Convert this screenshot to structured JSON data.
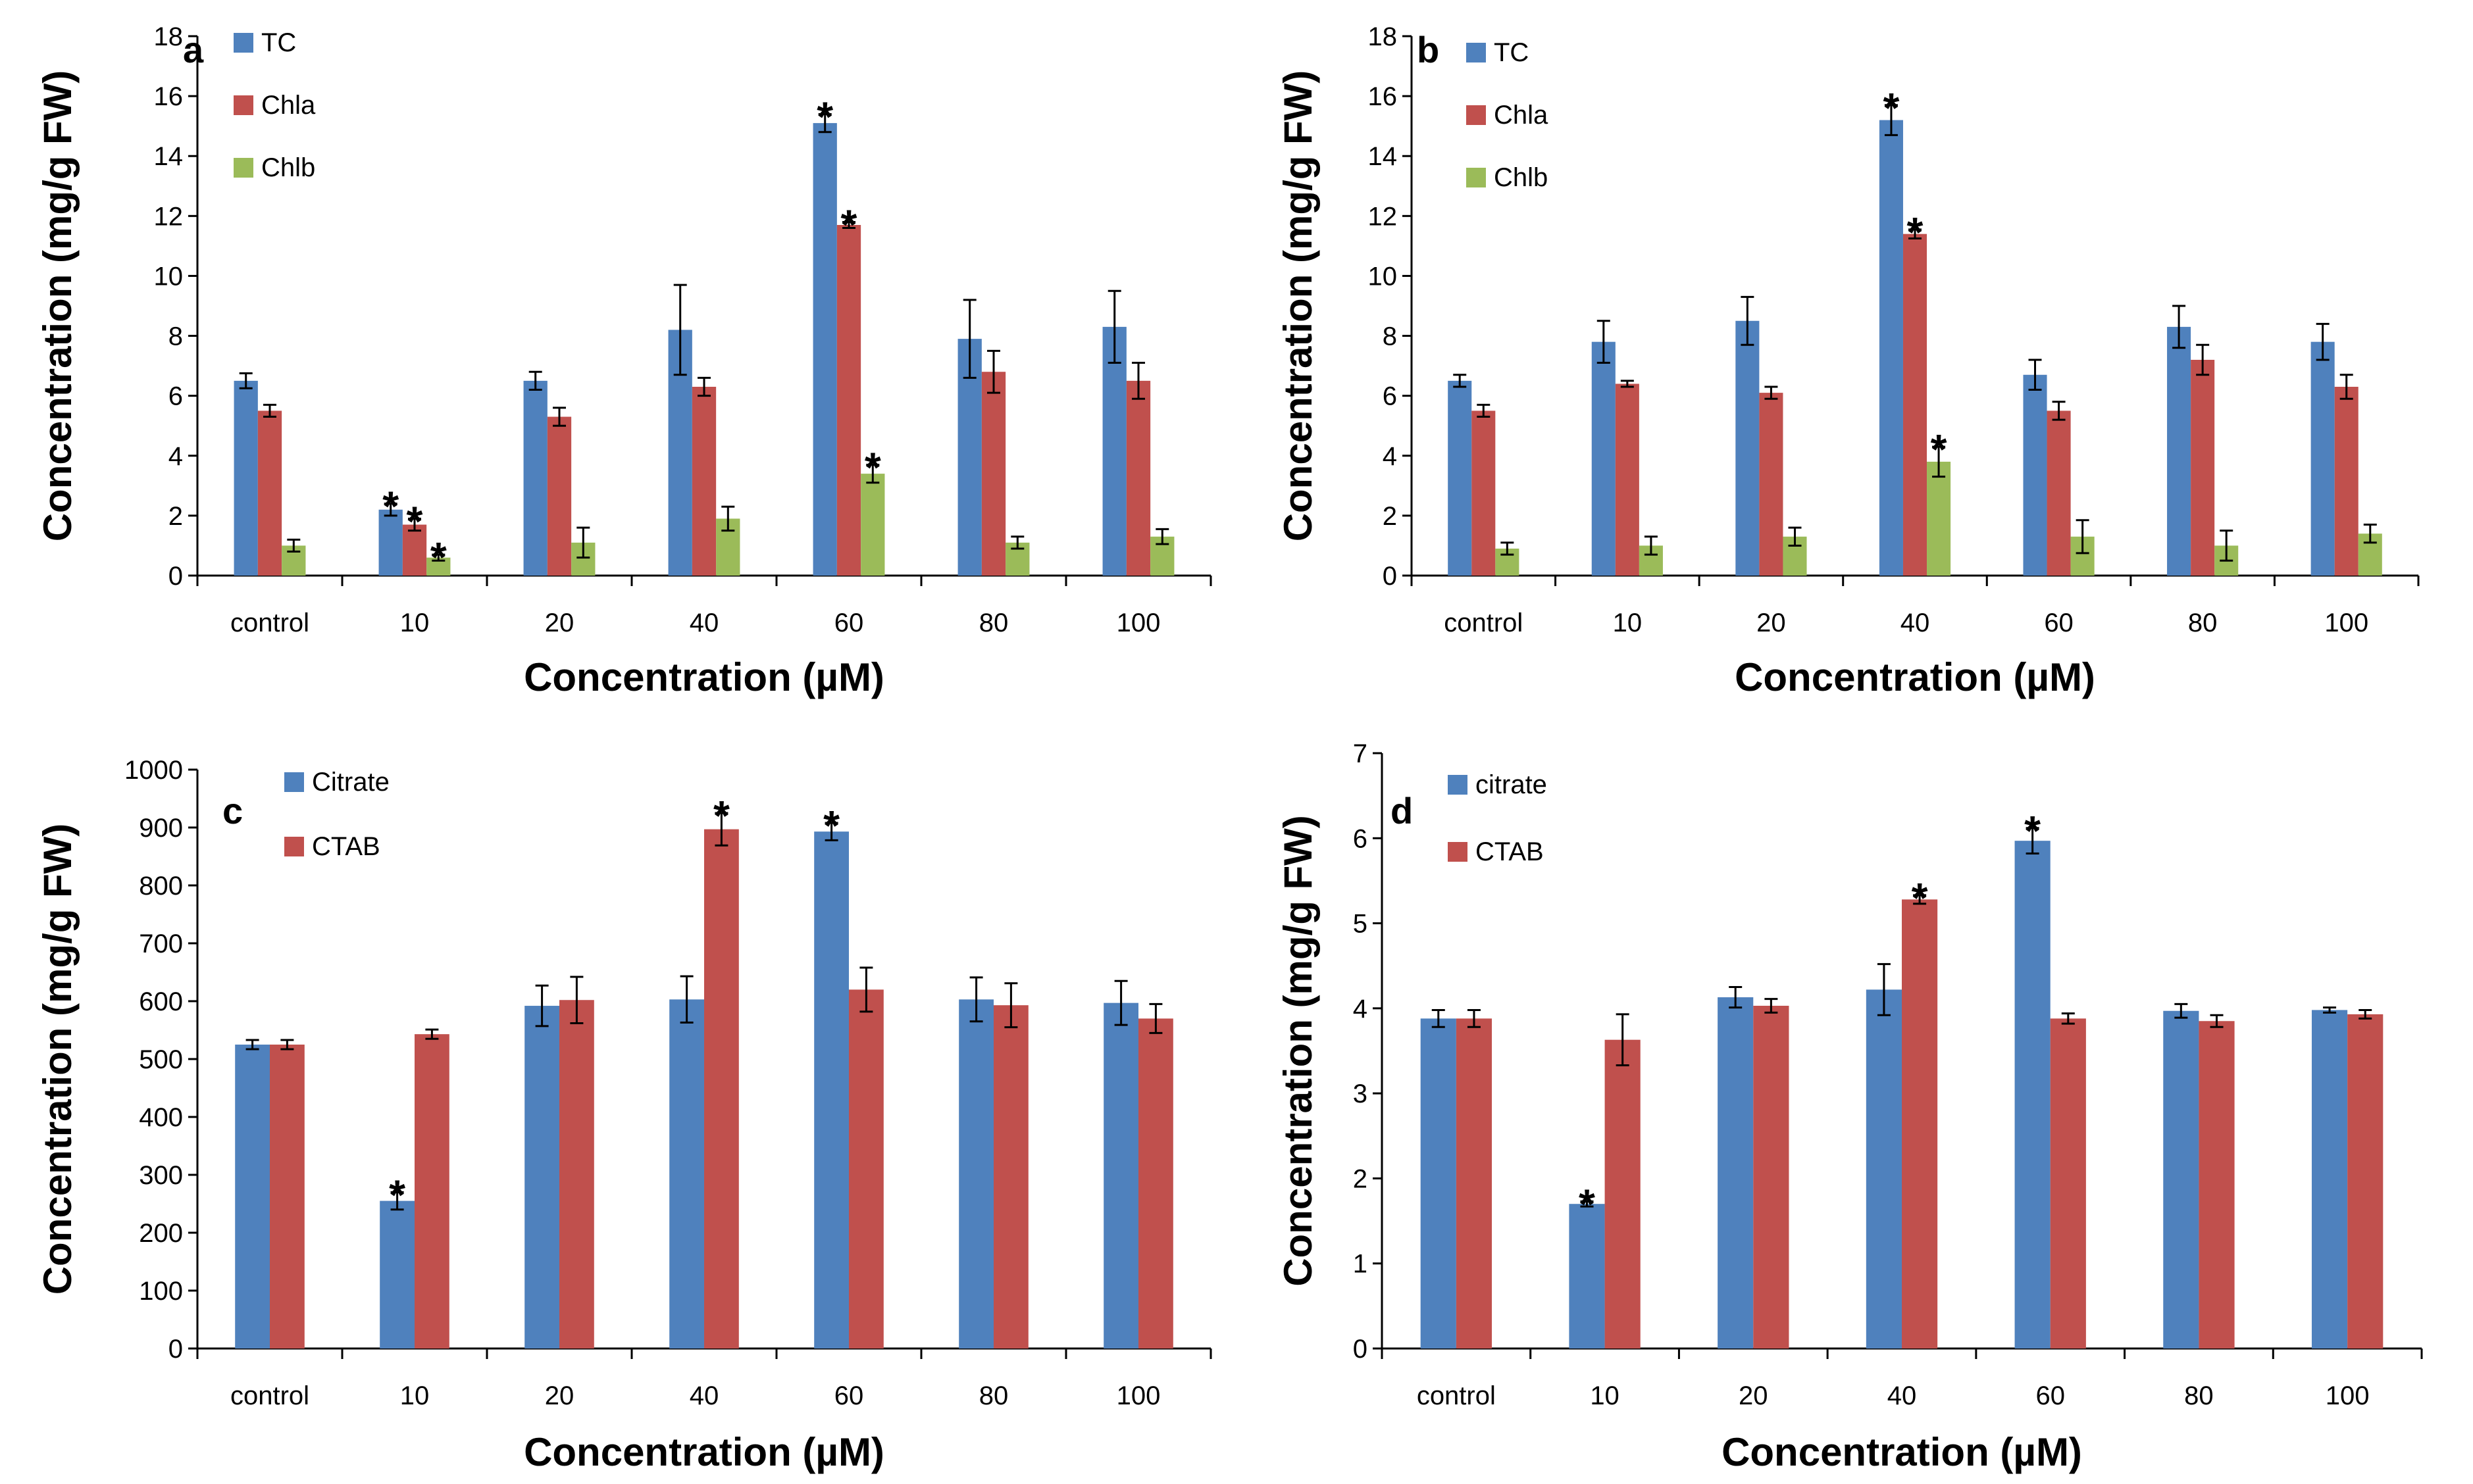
{
  "figure": {
    "panels": {
      "a": {
        "letter": "a"
      },
      "b": {
        "letter": "b"
      },
      "c": {
        "letter": "c"
      },
      "d": {
        "letter": "d"
      }
    }
  },
  "chart_data": [
    {
      "id": "a",
      "type": "bar",
      "title": "",
      "letter": "a",
      "xlabel": "Concentration (µM)",
      "ylabel": "Concentration (mg/g FW)",
      "ylim": [
        0,
        18
      ],
      "ytick_step": 2,
      "yticks": [
        "0",
        "2",
        "4",
        "6",
        "8",
        "10",
        "12",
        "14",
        "16",
        "18"
      ],
      "categories": [
        "control",
        "10",
        "20",
        "40",
        "60",
        "80",
        "100"
      ],
      "series": [
        {
          "name": "TC",
          "color": "#4F81BD",
          "values": [
            6.5,
            2.2,
            6.5,
            8.2,
            15.1,
            7.9,
            8.3
          ],
          "errors": [
            0.25,
            0.2,
            0.3,
            1.5,
            0.3,
            1.3,
            1.2
          ],
          "significant": [
            false,
            true,
            false,
            false,
            true,
            false,
            false
          ]
        },
        {
          "name": "Chla",
          "color": "#C0504D",
          "values": [
            5.5,
            1.7,
            5.3,
            6.3,
            11.7,
            6.8,
            6.5
          ],
          "errors": [
            0.2,
            0.2,
            0.3,
            0.3,
            0.1,
            0.7,
            0.6
          ],
          "significant": [
            false,
            true,
            false,
            false,
            true,
            false,
            false
          ]
        },
        {
          "name": "Chlb",
          "color": "#9BBB59",
          "values": [
            1.0,
            0.6,
            1.1,
            1.9,
            3.4,
            1.1,
            1.3
          ],
          "errors": [
            0.2,
            0.1,
            0.5,
            0.4,
            0.3,
            0.2,
            0.25
          ],
          "significant": [
            false,
            true,
            false,
            false,
            true,
            false,
            false
          ]
        }
      ]
    },
    {
      "id": "b",
      "type": "bar",
      "title": "",
      "letter": "b",
      "xlabel": "Concentration (µM)",
      "ylabel": "Concentration (mg/g FW)",
      "ylim": [
        0,
        18
      ],
      "ytick_step": 2,
      "yticks": [
        "0",
        "2",
        "4",
        "6",
        "8",
        "10",
        "12",
        "14",
        "16",
        "18"
      ],
      "categories": [
        "control",
        "10",
        "20",
        "40",
        "60",
        "80",
        "100"
      ],
      "series": [
        {
          "name": "TC",
          "color": "#4F81BD",
          "values": [
            6.5,
            7.8,
            8.5,
            15.2,
            6.7,
            8.3,
            7.8
          ],
          "errors": [
            0.2,
            0.7,
            0.8,
            0.5,
            0.5,
            0.7,
            0.6
          ],
          "significant": [
            false,
            false,
            false,
            true,
            false,
            false,
            false
          ]
        },
        {
          "name": "Chla",
          "color": "#C0504D",
          "values": [
            5.5,
            6.4,
            6.1,
            11.4,
            5.5,
            7.2,
            6.3
          ],
          "errors": [
            0.2,
            0.1,
            0.2,
            0.15,
            0.3,
            0.5,
            0.4
          ],
          "significant": [
            false,
            false,
            false,
            true,
            false,
            false,
            false
          ]
        },
        {
          "name": "Chlb",
          "color": "#9BBB59",
          "values": [
            0.9,
            1.0,
            1.3,
            3.8,
            1.3,
            1.0,
            1.4
          ],
          "errors": [
            0.2,
            0.3,
            0.3,
            0.5,
            0.55,
            0.5,
            0.3
          ],
          "significant": [
            false,
            false,
            false,
            true,
            false,
            false,
            false
          ]
        }
      ]
    },
    {
      "id": "c",
      "type": "bar",
      "title": "",
      "letter": "c",
      "xlabel": "Concentration (µM)",
      "ylabel": "Concentration (mg/g FW)",
      "ylim": [
        0,
        1000
      ],
      "ytick_step": 100,
      "yticks": [
        "0",
        "100",
        "200",
        "300",
        "400",
        "500",
        "600",
        "700",
        "800",
        "900",
        "1000"
      ],
      "categories": [
        "control",
        "10",
        "20",
        "40",
        "60",
        "80",
        "100"
      ],
      "series": [
        {
          "name": "Citrate",
          "color": "#4F81BD",
          "values": [
            525,
            255,
            592,
            603,
            893,
            603,
            597
          ],
          "errors": [
            8,
            15,
            35,
            40,
            15,
            38,
            38
          ],
          "significant": [
            false,
            true,
            false,
            false,
            true,
            false,
            false
          ]
        },
        {
          "name": "CTAB",
          "color": "#C0504D",
          "values": [
            525,
            543,
            602,
            897,
            620,
            593,
            570
          ],
          "errors": [
            8,
            8,
            40,
            28,
            38,
            38,
            25
          ],
          "significant": [
            false,
            false,
            false,
            true,
            false,
            false,
            false
          ]
        }
      ]
    },
    {
      "id": "d",
      "type": "bar",
      "title": "",
      "letter": "d",
      "xlabel": "Concentration (µM)",
      "ylabel": "Concentration (mg/g FW)",
      "ylim": [
        0,
        7
      ],
      "ytick_step": 1,
      "yticks": [
        "0",
        "1",
        "2",
        "3",
        "4",
        "5",
        "6",
        "7"
      ],
      "categories": [
        "control",
        "10",
        "20",
        "40",
        "60",
        "80",
        "100"
      ],
      "series": [
        {
          "name": "citrate",
          "color": "#4F81BD",
          "values": [
            3.88,
            1.7,
            4.13,
            4.22,
            5.97,
            3.97,
            3.98
          ],
          "errors": [
            0.1,
            0.03,
            0.12,
            0.3,
            0.15,
            0.08,
            0.03
          ],
          "significant": [
            false,
            true,
            false,
            false,
            true,
            false,
            false
          ]
        },
        {
          "name": "CTAB",
          "color": "#C0504D",
          "values": [
            3.88,
            3.63,
            4.03,
            5.28,
            3.88,
            3.85,
            3.93
          ],
          "errors": [
            0.1,
            0.3,
            0.08,
            0.05,
            0.06,
            0.07,
            0.05
          ],
          "significant": [
            false,
            false,
            false,
            true,
            false,
            false,
            false
          ]
        }
      ]
    }
  ]
}
